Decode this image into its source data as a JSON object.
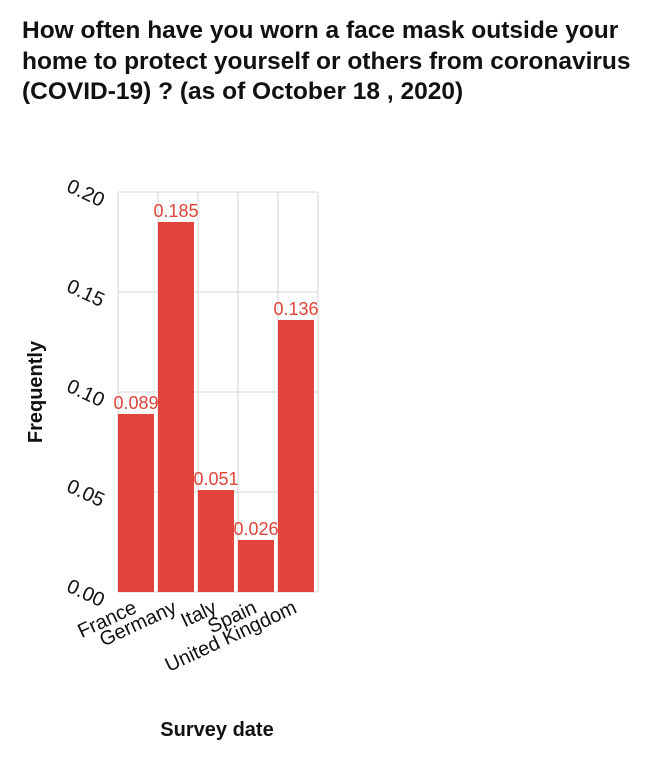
{
  "chart_data": {
    "type": "bar",
    "title": "How often have you worn a face mask outside your home to protect yourself or others from coronavirus (COVID-19) ? (as of October 18 , 2020)",
    "xlabel": "Survey date",
    "ylabel": "Frequently",
    "categories": [
      "France",
      "Germany",
      "Italy",
      "Spain",
      "United Kingdom"
    ],
    "values": [
      0.089,
      0.185,
      0.051,
      0.026,
      0.136
    ],
    "data_labels": [
      "0.089",
      "0.185",
      "0.051",
      "0.026",
      "0.136"
    ],
    "ylim": [
      0,
      0.2
    ],
    "yticks": [
      0,
      0.05,
      0.1,
      0.15,
      0.2
    ],
    "ytick_labels": [
      "0.00",
      "0.05",
      "0.10",
      "0.15",
      "0.20"
    ],
    "grid": true,
    "legend": "none",
    "colors": {
      "bar": "#e0443a",
      "data_label": "#e0443a",
      "grid": "#d6d6d6",
      "text": "#111111"
    }
  }
}
